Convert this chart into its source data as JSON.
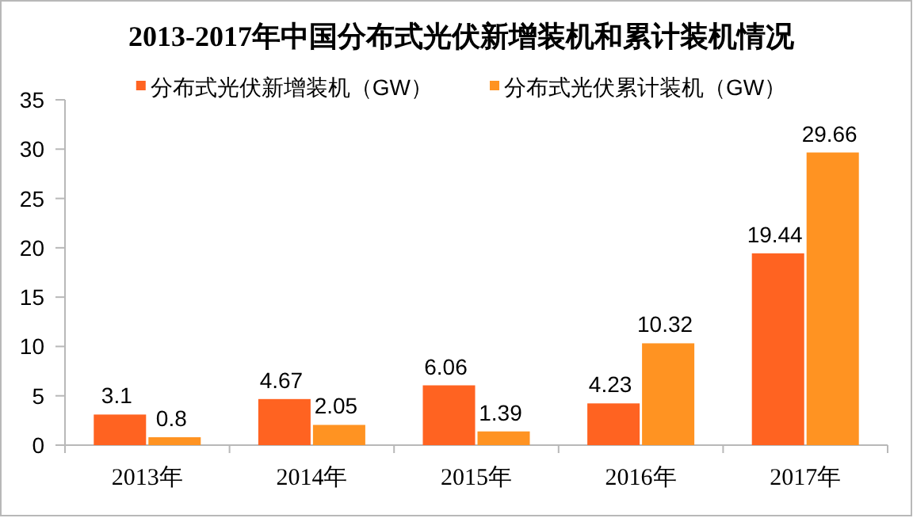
{
  "chart_data": {
    "type": "bar",
    "title": "2013-2017年中国分布式光伏新增装机和累计装机情况",
    "categories": [
      "2013年",
      "2014年",
      "2015年",
      "2016年",
      "2017年"
    ],
    "series": [
      {
        "name": "分布式光伏新增装机（GW）",
        "color": "#ff6321",
        "values": [
          3.1,
          4.67,
          6.06,
          4.23,
          19.44
        ]
      },
      {
        "name": "分布式光伏累计装机（GW）",
        "color": "#ff9322",
        "values": [
          0.8,
          2.05,
          1.39,
          10.32,
          29.66
        ]
      }
    ],
    "ylim": [
      0,
      35
    ],
    "yticks": [
      0,
      5,
      10,
      15,
      20,
      25,
      30,
      35
    ],
    "data_labels": true,
    "legend": "top",
    "grid": false
  }
}
